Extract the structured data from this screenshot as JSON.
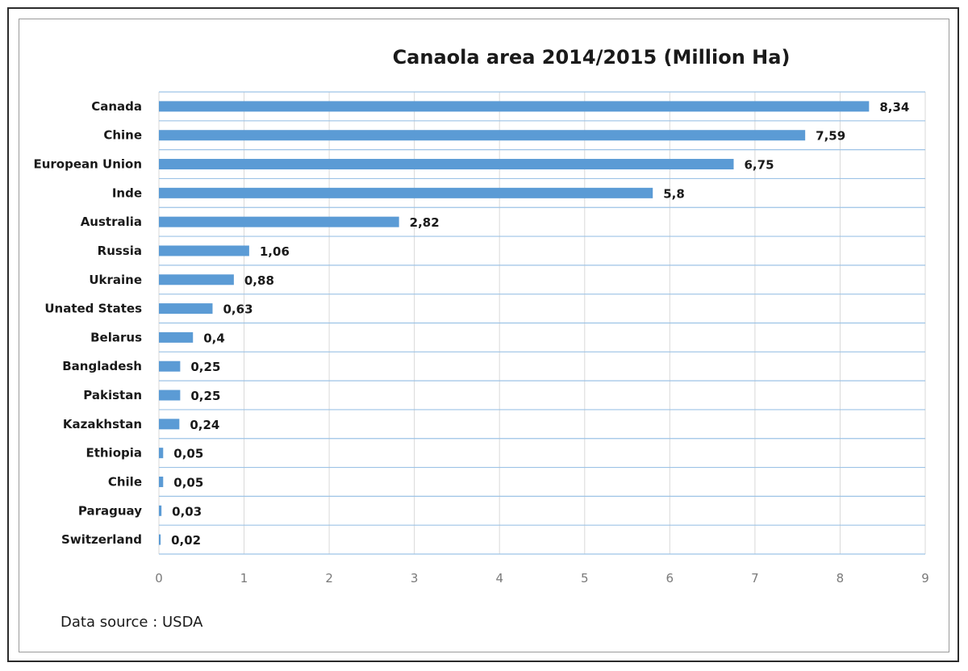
{
  "chart_data": {
    "type": "bar",
    "orientation": "horizontal",
    "title": "Canaola area 2014/2015 (Million Ha)",
    "categories": [
      "Canada",
      "Chine",
      "European Union",
      "Inde",
      "Australia",
      "Russia",
      "Ukraine",
      "Unated States",
      "Belarus",
      "Bangladesh",
      "Pakistan",
      "Kazakhstan",
      "Ethiopia",
      "Chile",
      "Paraguay",
      "Switzerland"
    ],
    "values": [
      8.34,
      7.59,
      6.75,
      5.8,
      2.82,
      1.06,
      0.88,
      0.63,
      0.4,
      0.25,
      0.25,
      0.24,
      0.05,
      0.05,
      0.03,
      0.02
    ],
    "value_labels": [
      "8,34",
      "7,59",
      "6,75",
      "5,8",
      "2,82",
      "1,06",
      "0,88",
      "0,63",
      "0,4",
      "0,25",
      "0,25",
      "0,24",
      "0,05",
      "0,05",
      "0,03",
      "0,02"
    ],
    "xlim": [
      0,
      9
    ],
    "x_ticks": [
      0,
      1,
      2,
      3,
      4,
      5,
      6,
      7,
      8,
      9
    ],
    "grid": true,
    "legend": "none",
    "bar_color": "#5b9bd5",
    "grid_color": "#d9d9d9",
    "row_line_color": "#9dc3e6",
    "source": "Data source : USDA"
  }
}
